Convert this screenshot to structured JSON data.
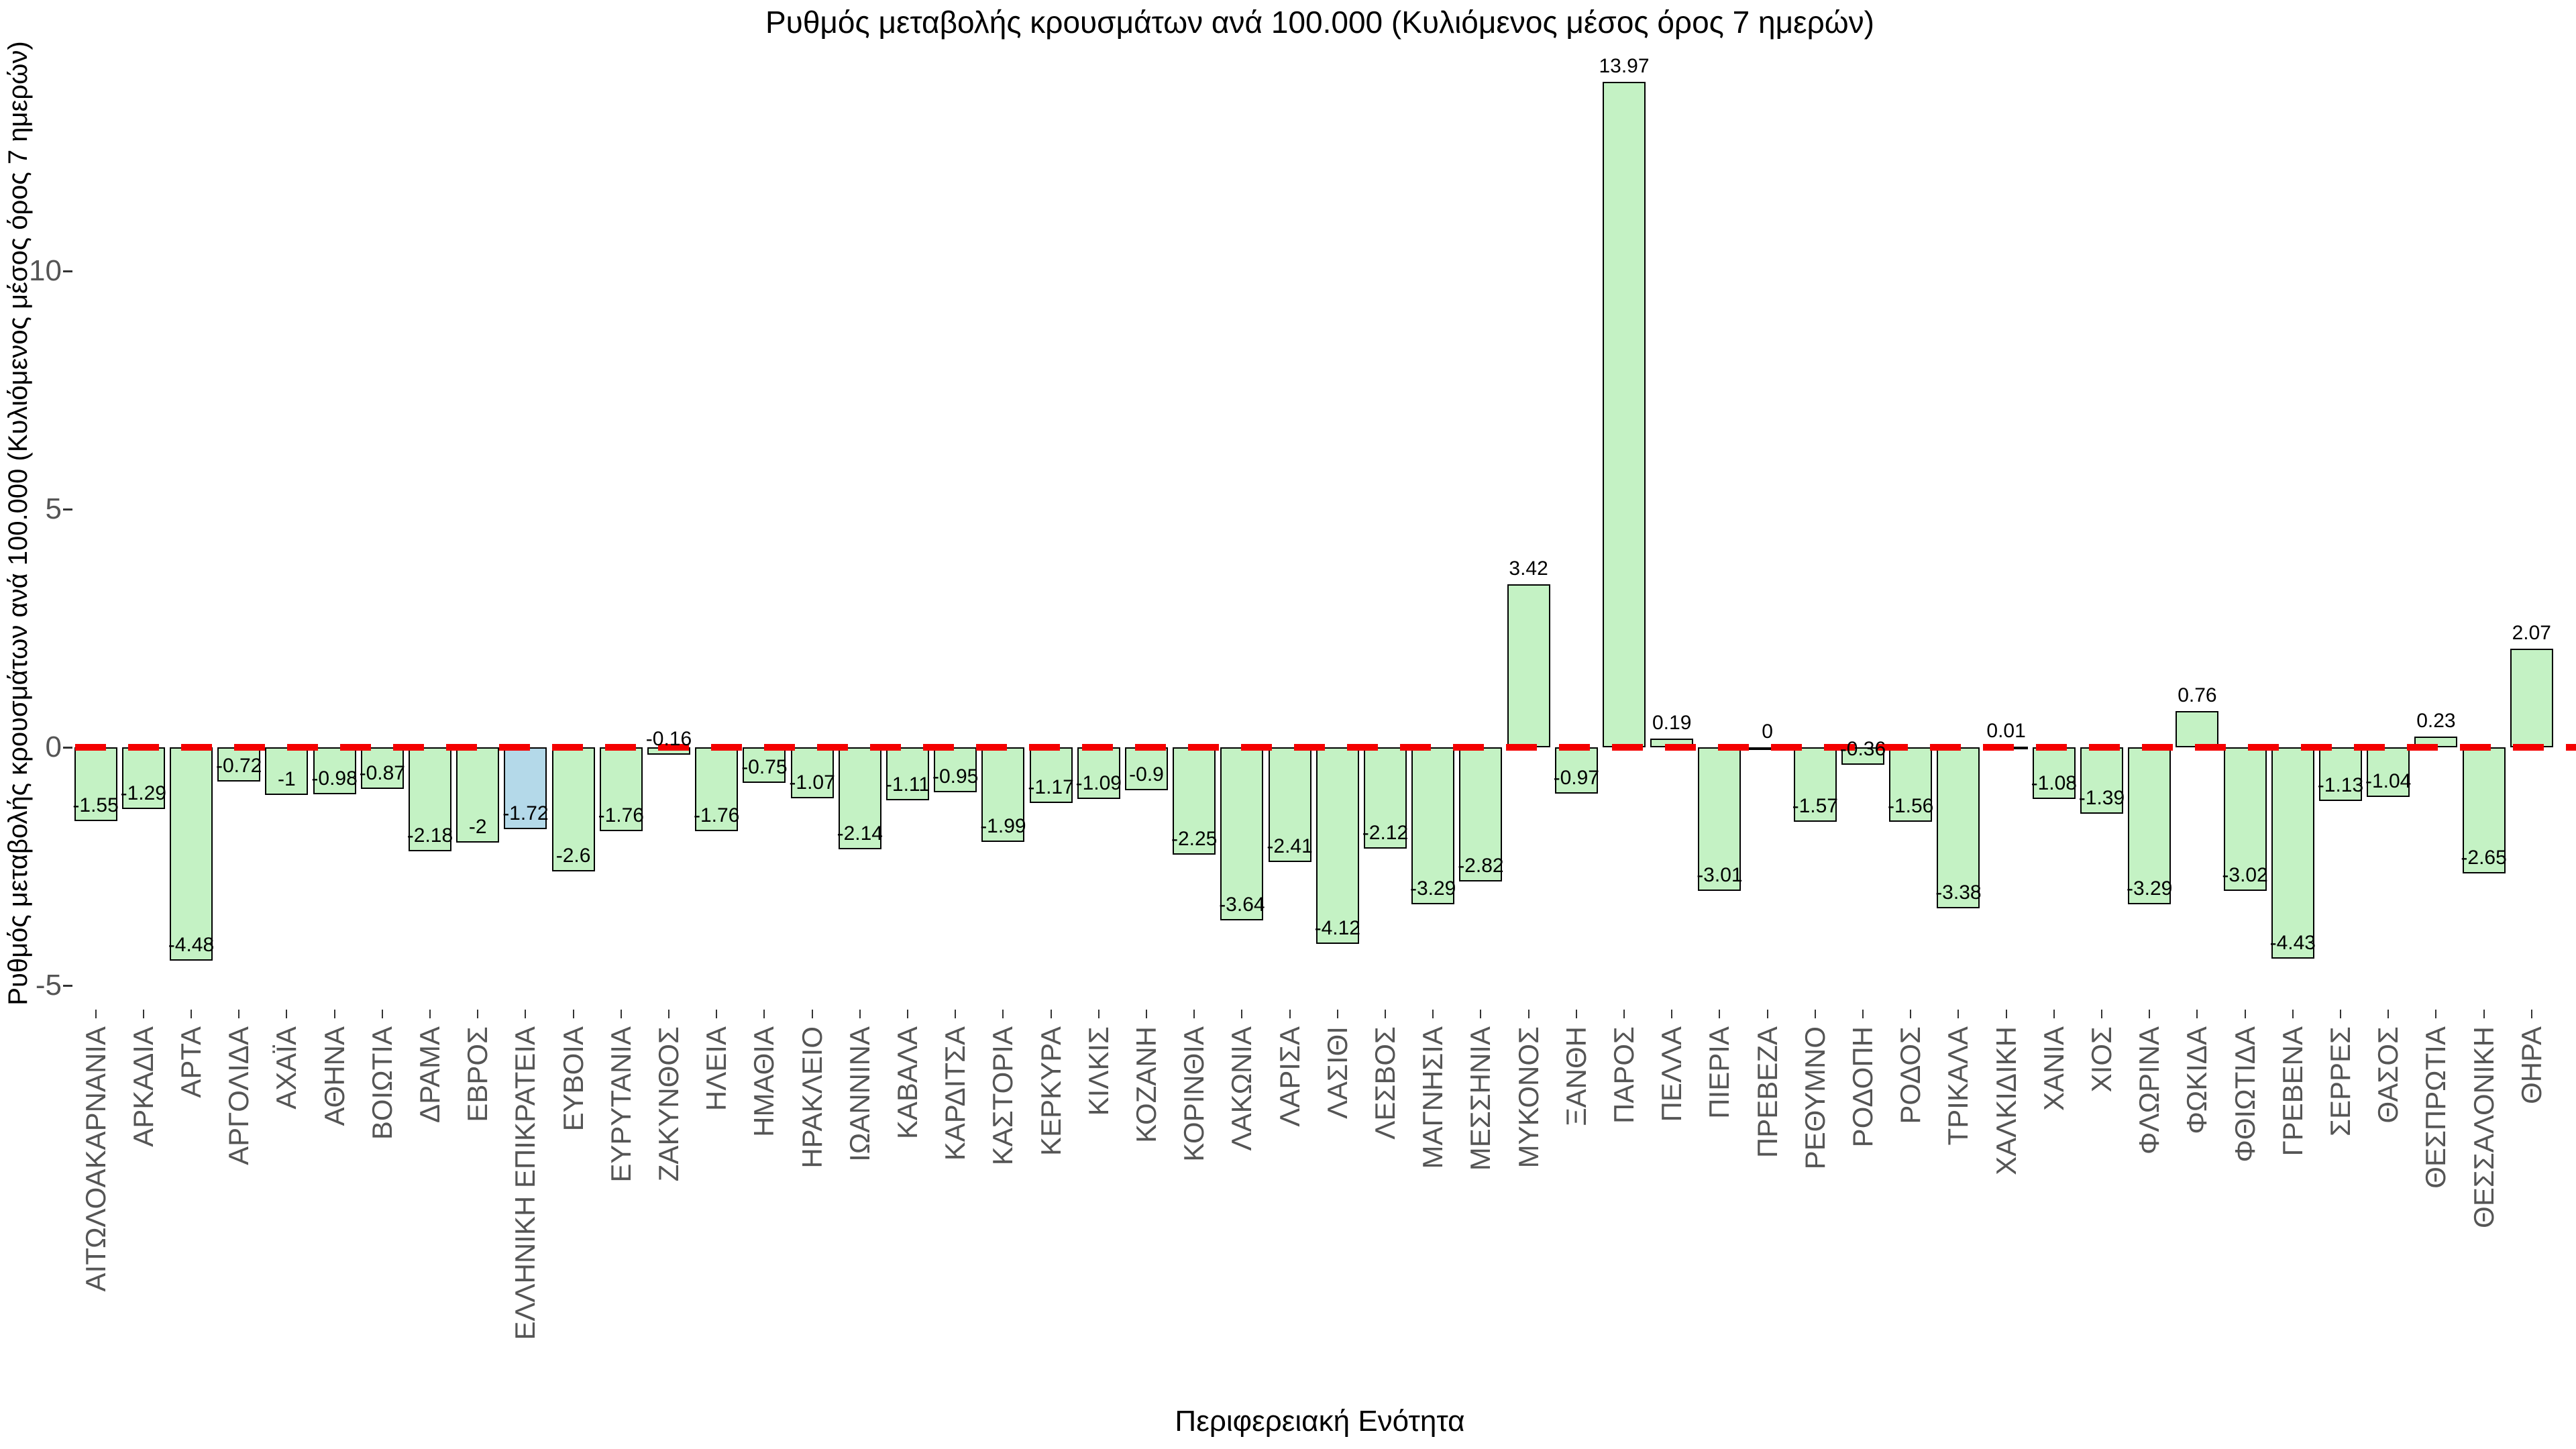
{
  "chart_data": {
    "type": "bar",
    "title": "Ρυθμός μεταβολής κρουσμάτων ανά 100.000 (Κυλιόμενος μέσος όρος 7 ημερών)",
    "xlabel": "Περιφερειακή Ενότητα",
    "ylabel": "Ρυθμός μεταβολής κρουσμάτων ανά 100.000 (Κυλιόμενος μέσος όρος 7 ημερών)",
    "categories": [
      "ΑΙΤΩΛΟΑΚΑΡΝΑΝΙΑ",
      "ΑΡΚΑΔΙΑ",
      "ΑΡΤΑ",
      "ΑΡΓΟΛΙΔΑ",
      "ΑΧΑΪΑ",
      "ΑΘΗΝΑ",
      "ΒΟΙΩΤΙΑ",
      "ΔΡΑΜΑ",
      "ΕΒΡΟΣ",
      "ΕΛΛΗΝΙΚΗ ΕΠΙΚΡΑΤΕΙΑ",
      "ΕΥΒΟΙΑ",
      "ΕΥΡΥΤΑΝΙΑ",
      "ΖΑΚΥΝΘΟΣ",
      "ΗΛΕΙΑ",
      "ΗΜΑΘΙΑ",
      "ΗΡΑΚΛΕΙΟ",
      "ΙΩΑΝΝΙΝΑ",
      "ΚΑΒΑΛΑ",
      "ΚΑΡΔΙΤΣΑ",
      "ΚΑΣΤΟΡΙΑ",
      "ΚΕΡΚΥΡΑ",
      "ΚΙΛΚΙΣ",
      "ΚΟΖΑΝΗ",
      "ΚΟΡΙΝΘΙΑ",
      "ΛΑΚΩΝΙΑ",
      "ΛΑΡΙΣΑ",
      "ΛΑΣΙΘΙ",
      "ΛΕΣΒΟΣ",
      "ΜΑΓΝΗΣΙΑ",
      "ΜΕΣΣΗΝΙΑ",
      "ΜΥΚΟΝΟΣ",
      "ΞΑΝΘΗ",
      "ΠΑΡΟΣ",
      "ΠΕΛΛΑ",
      "ΠΙΕΡΙΑ",
      "ΠΡΕΒΕΖΑ",
      "ΡΕΘΥΜΝΟ",
      "ΡΟΔΟΠΗ",
      "ΡΟΔΟΣ",
      "ΤΡΙΚΑΛΑ",
      "ΧΑΛΚΙΔΙΚΗ",
      "ΧΑΝΙΑ",
      "ΧΙΟΣ",
      "ΦΛΩΡΙΝΑ",
      "ΦΩΚΙΔΑ",
      "ΦΘΙΩΤΙΔΑ",
      "ΓΡΕΒΕΝΑ",
      "ΣΕΡΡΕΣ",
      "ΘΑΣΟΣ",
      "ΘΕΣΠΡΩΤΙΑ",
      "ΘΕΣΣΑΛΟΝΙΚΗ",
      "ΘΗΡΑ"
    ],
    "values": [
      -1.55,
      -1.29,
      -4.48,
      -0.72,
      -1,
      -0.98,
      -0.87,
      -2.18,
      -2,
      -1.72,
      -2.6,
      -1.76,
      -0.16,
      -1.76,
      -0.75,
      -1.07,
      -2.14,
      -1.11,
      -0.95,
      -1.99,
      -1.17,
      -1.09,
      -0.9,
      -2.25,
      -3.64,
      -2.41,
      -4.12,
      -2.12,
      -3.29,
      -2.82,
      3.42,
      -0.97,
      13.97,
      0.19,
      -3.01,
      0,
      -1.57,
      -0.36,
      -1.56,
      -3.38,
      0.01,
      -1.08,
      -1.39,
      -3.29,
      0.76,
      -3.02,
      -4.43,
      -1.13,
      -1.04,
      0.23,
      -2.65,
      2.07
    ],
    "value_labels": [
      "-1.55",
      "-1.29",
      "-4.48",
      "-0.72",
      "-1",
      "-0.98",
      "-0.87",
      "-2.18",
      "-2",
      "-1.72",
      "-2.6",
      "-1.76",
      "-0.16",
      "-1.76",
      "-0.75",
      "-1.07",
      "-2.14",
      "-1.11",
      "-0.95",
      "-1.99",
      "-1.17",
      "-1.09",
      "-0.9",
      "-2.25",
      "-3.64",
      "-2.41",
      "-4.12",
      "-2.12",
      "-3.29",
      "-2.82",
      "3.42",
      "-0.97",
      "13.97",
      "0.19",
      "-3.01",
      "0",
      "-1.57",
      "-0.36",
      "-1.56",
      "-3.38",
      "0.01",
      "-1.08",
      "-1.39",
      "-3.29",
      "0.76",
      "-3.02",
      "-4.43",
      "-1.13",
      "-1.04",
      "0.23",
      "-2.65",
      "2.07"
    ],
    "highlight_category": "ΕΛΛΗΝΙΚΗ ΕΠΙΚΡΑΤΕΙΑ",
    "highlight_index": 9,
    "yticks": [
      -5,
      0,
      5,
      10
    ],
    "ylim": [
      -5.6,
      14.9
    ],
    "zero_line": {
      "style": "dashed",
      "color": "#f40000",
      "y": 0
    },
    "grid": false,
    "legend": null,
    "colors": {
      "bar_fill": "#c4f2c4",
      "highlight_fill": "#b4d9e9",
      "bar_border": "#000000",
      "title_text": "#000000",
      "value_text": "#000000",
      "tick_text": "#555555",
      "background": "#ffffff"
    }
  }
}
